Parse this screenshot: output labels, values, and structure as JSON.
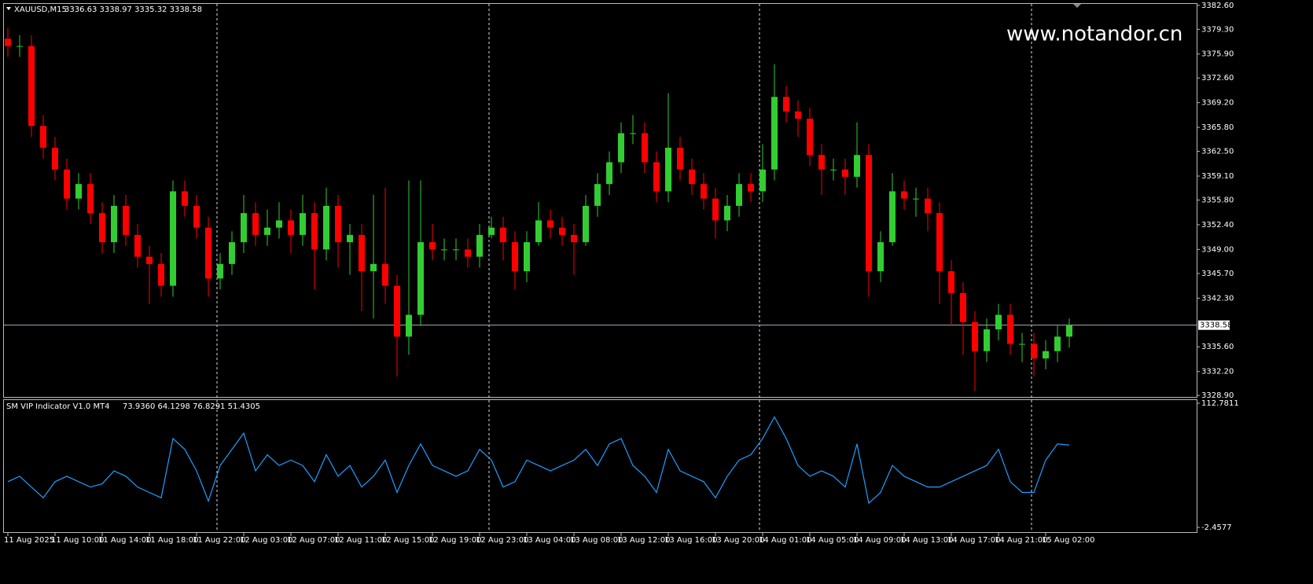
{
  "chart_data": [
    {
      "type": "candlestick",
      "title": "XAUUSD,M15",
      "subtitle": "3336.63 3338.97 3335.32 3338.58",
      "watermark": "www.notandor.cn",
      "up_color": "#32cd32",
      "down_color": "#ff0000",
      "open": [
        3378,
        3377,
        3377,
        3366,
        3363,
        3360,
        3356,
        3358,
        3354,
        3350,
        3355,
        3351,
        3348,
        3347,
        3344,
        3357,
        3355,
        3352,
        3345,
        3347,
        3350,
        3354,
        3351,
        3352,
        3353,
        3351,
        3354,
        3349,
        3355,
        3350,
        3351,
        3346,
        3347,
        3344,
        3337,
        3340,
        3350,
        3349,
        3349,
        3349,
        3348,
        3351,
        3352,
        3350,
        3346,
        3350,
        3353,
        3352,
        3351,
        3350,
        3355,
        3358,
        3361,
        3365,
        3365,
        3361,
        3357,
        3363,
        3360,
        3358,
        3356,
        3353,
        3355,
        3358,
        3357,
        3360,
        3370,
        3368,
        3367,
        3362,
        3360,
        3360,
        3359,
        3362,
        3346,
        3350,
        3357,
        3356,
        3356,
        3354,
        3346,
        3343,
        3339,
        3335,
        3338,
        3340,
        3336,
        3336,
        3334,
        3335,
        3337
      ],
      "high": [
        3379.5,
        3378.5,
        3378.5,
        3367.5,
        3364.5,
        3361.5,
        3359.5,
        3359.5,
        3355.5,
        3356.5,
        3356.5,
        3352.5,
        3349.5,
        3348.5,
        3358.5,
        3358.5,
        3356.5,
        3353.5,
        3348.5,
        3351.5,
        3356.5,
        3355.5,
        3354.5,
        3355.5,
        3354.5,
        3356.5,
        3355.5,
        3357.5,
        3356.5,
        3352.5,
        3352.5,
        3356.5,
        3357.5,
        3345.5,
        3358.5,
        3358.5,
        3352.5,
        3350.5,
        3350.5,
        3350.5,
        3352.5,
        3353.5,
        3353.5,
        3351.5,
        3351.5,
        3355.5,
        3354.5,
        3353.5,
        3352.5,
        3356.5,
        3359.5,
        3362.5,
        3366.5,
        3367.5,
        3366.5,
        3362.5,
        3370.5,
        3364.5,
        3361.5,
        3359.5,
        3357.5,
        3356.5,
        3359.5,
        3359.5,
        3363.5,
        3374.5,
        3371.5,
        3369.5,
        3368.5,
        3363.5,
        3361.5,
        3361.5,
        3366.5,
        3363.5,
        3351.5,
        3359.5,
        3358.5,
        3357.5,
        3357.5,
        3355.5,
        3347.5,
        3344.5,
        3340.5,
        3339.5,
        3341.5,
        3341.5,
        3337.5,
        3337.5,
        3336.5,
        3338.5,
        3339.5
      ],
      "low": [
        3375.5,
        3375.5,
        3364.5,
        3361.5,
        3358.5,
        3354.5,
        3354.5,
        3352.5,
        3348.5,
        3348.5,
        3349.5,
        3346.5,
        3341.5,
        3342.5,
        3342.5,
        3353.5,
        3350.5,
        3342.5,
        3343.5,
        3345.5,
        3348.5,
        3349.5,
        3349.5,
        3350.5,
        3348.5,
        3349.5,
        3343.5,
        3347.5,
        3346.5,
        3345.5,
        3340.5,
        3339.5,
        3341.5,
        3331.5,
        3334.5,
        3338.5,
        3347.5,
        3347.5,
        3347.5,
        3346.5,
        3346.5,
        3350.5,
        3347.5,
        3343.5,
        3344.5,
        3349.5,
        3350.5,
        3349.5,
        3345.5,
        3349.5,
        3353.5,
        3356.5,
        3359.5,
        3363.5,
        3359.5,
        3355.5,
        3355.5,
        3358.5,
        3356.5,
        3354.5,
        3350.5,
        3351.5,
        3353.5,
        3355.5,
        3355.5,
        3358.5,
        3366.5,
        3364.5,
        3360.5,
        3356.5,
        3358.5,
        3356.5,
        3357.5,
        3342.5,
        3344.5,
        3349.5,
        3354.5,
        3353.5,
        3351.5,
        3341.5,
        3338.5,
        3334.5,
        3329.5,
        3333.5,
        3336.5,
        3334.5,
        3333.5,
        3331.5,
        3332.5,
        3333.5,
        3335.5
      ],
      "close": [
        3377,
        3377,
        3366,
        3363,
        3360,
        3356,
        3358,
        3354,
        3350,
        3355,
        3351,
        3348,
        3347,
        3344,
        3357,
        3355,
        3352,
        3345,
        3347,
        3350,
        3354,
        3351,
        3352,
        3353,
        3351,
        3354,
        3349,
        3355,
        3350,
        3351,
        3346,
        3347,
        3344,
        3337,
        3340,
        3350,
        3349,
        3349,
        3349,
        3348,
        3351,
        3352,
        3350,
        3346,
        3350,
        3353,
        3352,
        3351,
        3350,
        3355,
        3358,
        3361,
        3365,
        3365,
        3361,
        3357,
        3363,
        3360,
        3358,
        3356,
        3353,
        3355,
        3358,
        3357,
        3360,
        3370,
        3368,
        3367,
        3362,
        3360,
        3360,
        3359,
        3362,
        3346,
        3350,
        3357,
        3356,
        3356,
        3354,
        3346,
        3343,
        3339,
        3335,
        3338,
        3340,
        3336,
        3336,
        3334,
        3335,
        3337,
        3338.58
      ],
      "ylim": [
        3328.7,
        3382.9
      ],
      "yticks": [
        {
          "value": 3382.6,
          "label": "3382.60"
        },
        {
          "value": 3379.3,
          "label": "3379.30"
        },
        {
          "value": 3375.9,
          "label": "3375.90"
        },
        {
          "value": 3372.6,
          "label": "3372.60"
        },
        {
          "value": 3369.2,
          "label": "3369.20"
        },
        {
          "value": 3365.8,
          "label": "3365.80"
        },
        {
          "value": 3362.5,
          "label": "3362.50"
        },
        {
          "value": 3359.1,
          "label": "3359.10"
        },
        {
          "value": 3355.8,
          "label": "3355.80"
        },
        {
          "value": 3352.4,
          "label": "3352.40"
        },
        {
          "value": 3349,
          "label": "3349.00"
        },
        {
          "value": 3345.7,
          "label": "3345.70"
        },
        {
          "value": 3342.3,
          "label": "3342.30"
        },
        {
          "value": 3335.6,
          "label": "3335.60"
        },
        {
          "value": 3332.2,
          "label": "3332.20"
        },
        {
          "value": 3328.9,
          "label": "3328.90"
        }
      ],
      "current_price": 3338.58,
      "xticks": [
        {
          "value": 0,
          "label": "11 Aug 2025"
        },
        {
          "value": 4,
          "label": "11 Aug 10:00"
        },
        {
          "value": 8,
          "label": "11 Aug 14:00"
        },
        {
          "value": 12,
          "label": "11 Aug 18:00"
        },
        {
          "value": 16,
          "label": "11 Aug 22:00"
        },
        {
          "value": 20,
          "label": "12 Aug 03:00"
        },
        {
          "value": 24,
          "label": "12 Aug 07:00"
        },
        {
          "value": 28,
          "label": "12 Aug 11:00"
        },
        {
          "value": 32,
          "label": "12 Aug 15:00"
        },
        {
          "value": 36,
          "label": "12 Aug 19:00"
        },
        {
          "value": 40,
          "label": "12 Aug 23:00"
        },
        {
          "value": 44,
          "label": "13 Aug 04:00"
        },
        {
          "value": 48,
          "label": "13 Aug 08:00"
        },
        {
          "value": 52,
          "label": "13 Aug 12:00"
        },
        {
          "value": 56,
          "label": "13 Aug 16:00"
        },
        {
          "value": 60,
          "label": "13 Aug 20:00"
        },
        {
          "value": 64,
          "label": "14 Aug 01:00"
        },
        {
          "value": 68,
          "label": "14 Aug 05:00"
        },
        {
          "value": 72,
          "label": "14 Aug 09:00"
        },
        {
          "value": 76,
          "label": "14 Aug 13:00"
        },
        {
          "value": 80,
          "label": "14 Aug 17:00"
        },
        {
          "value": 84,
          "label": "14 Aug 21:00"
        },
        {
          "value": 88,
          "label": "15 Aug 02:00"
        }
      ]
    },
    {
      "type": "line",
      "title": "SM VIP Indicator V1.0 MT4",
      "subtitle": "73.9360 64.1298 76.8291 51.4305",
      "color": "#1e9fff",
      "values": [
        40,
        45,
        35,
        25,
        40,
        45,
        40,
        35,
        38,
        50,
        45,
        35,
        30,
        25,
        80,
        70,
        50,
        22,
        55,
        70,
        85,
        50,
        65,
        55,
        60,
        55,
        40,
        65,
        45,
        55,
        35,
        45,
        60,
        30,
        55,
        75,
        55,
        50,
        45,
        50,
        70,
        60,
        35,
        40,
        60,
        55,
        50,
        55,
        60,
        70,
        55,
        75,
        80,
        55,
        45,
        30,
        70,
        50,
        45,
        40,
        25,
        45,
        60,
        65,
        80,
        100,
        80,
        55,
        45,
        50,
        45,
        35,
        75,
        20,
        30,
        55,
        45,
        40,
        35,
        35,
        40,
        45,
        50,
        55,
        70,
        40,
        30,
        30,
        60,
        75,
        73.936
      ],
      "ylim": [
        -2.4577,
        112.7811
      ],
      "yticks": [
        112.7811,
        -2.4577
      ]
    }
  ]
}
